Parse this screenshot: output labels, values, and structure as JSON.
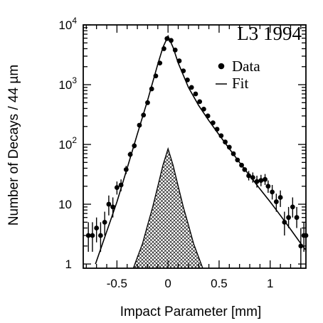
{
  "chart_data": {
    "type": "scatter",
    "annotation": "L3  1994",
    "xlabel": "Impact Parameter [mm]",
    "ylabel": "Number of Decays / 44 µm",
    "xlim": [
      -0.83,
      1.35
    ],
    "ylim": [
      0.85,
      10000
    ],
    "yscale": "log",
    "xticks": [
      -0.5,
      0,
      0.5,
      1
    ],
    "xtick_labels": [
      "-0.5",
      "0",
      "0.5",
      "1"
    ],
    "yticks": [
      1,
      10,
      100,
      1000,
      10000
    ],
    "ytick_labels": [
      {
        "base": "1",
        "exp": ""
      },
      {
        "base": "10",
        "exp": ""
      },
      {
        "base": "10",
        "exp": "2"
      },
      {
        "base": "10",
        "exp": "3"
      },
      {
        "base": "10",
        "exp": "4"
      }
    ],
    "legend": {
      "position": "top-right",
      "entries": [
        {
          "label": "Data",
          "marker": "dot"
        },
        {
          "label": "Fit",
          "marker": "line"
        }
      ]
    },
    "series": [
      {
        "name": "Data",
        "kind": "points-with-errors",
        "points": [
          {
            "x": -0.78,
            "y": 3.0,
            "ylo": 1.6,
            "yhi": 5.0
          },
          {
            "x": -0.74,
            "y": 3.0,
            "ylo": 1.6,
            "yhi": 5.0
          },
          {
            "x": -0.7,
            "y": 4.0,
            "ylo": 2.3,
            "yhi": 6.0
          },
          {
            "x": -0.66,
            "y": 3.0,
            "ylo": 1.6,
            "yhi": 5.0
          },
          {
            "x": -0.62,
            "y": 5.0,
            "ylo": 3.0,
            "yhi": 7.5
          },
          {
            "x": -0.58,
            "y": 10.0,
            "ylo": 6.5,
            "yhi": 14.0
          },
          {
            "x": -0.54,
            "y": 9.0,
            "ylo": 6.0,
            "yhi": 13.0
          },
          {
            "x": -0.5,
            "y": 19.0,
            "ylo": 14.5,
            "yhi": 24.0
          },
          {
            "x": -0.46,
            "y": 21.0,
            "ylo": 16.5,
            "yhi": 26.0
          },
          {
            "x": -0.41,
            "y": 38.0,
            "ylo": 32.0,
            "yhi": 44.0
          },
          {
            "x": -0.37,
            "y": 68.0,
            "ylo": 60.0,
            "yhi": 76.0
          },
          {
            "x": -0.33,
            "y": 95.0,
            "ylo": 86.0,
            "yhi": 105.0
          },
          {
            "x": -0.28,
            "y": 210.0
          },
          {
            "x": -0.24,
            "y": 310.0
          },
          {
            "x": -0.2,
            "y": 500.0
          },
          {
            "x": -0.16,
            "y": 850.0
          },
          {
            "x": -0.12,
            "y": 1400.0
          },
          {
            "x": -0.08,
            "y": 2300.0
          },
          {
            "x": -0.04,
            "y": 4000.0
          },
          {
            "x": -0.01,
            "y": 5900.0
          },
          {
            "x": 0.03,
            "y": 5500.0
          },
          {
            "x": 0.07,
            "y": 3800.0
          },
          {
            "x": 0.11,
            "y": 2500.0
          },
          {
            "x": 0.15,
            "y": 1700.0
          },
          {
            "x": 0.19,
            "y": 1200.0
          },
          {
            "x": 0.23,
            "y": 900.0
          },
          {
            "x": 0.27,
            "y": 700.0
          },
          {
            "x": 0.31,
            "y": 520.0
          },
          {
            "x": 0.35,
            "y": 390.0
          },
          {
            "x": 0.39,
            "y": 300.0
          },
          {
            "x": 0.44,
            "y": 230.0
          },
          {
            "x": 0.48,
            "y": 180.0
          },
          {
            "x": 0.52,
            "y": 140.0
          },
          {
            "x": 0.56,
            "y": 110.0
          },
          {
            "x": 0.6,
            "y": 90.0
          },
          {
            "x": 0.64,
            "y": 70.0
          },
          {
            "x": 0.68,
            "y": 55.0
          },
          {
            "x": 0.72,
            "y": 45.0
          },
          {
            "x": 0.75,
            "y": 38.0
          },
          {
            "x": 0.79,
            "y": 30.0,
            "ylo": 25.0,
            "yhi": 36.0
          },
          {
            "x": 0.83,
            "y": 28.0,
            "ylo": 23.0,
            "yhi": 34.0
          },
          {
            "x": 0.87,
            "y": 24.0,
            "ylo": 19.0,
            "yhi": 30.0
          },
          {
            "x": 0.91,
            "y": 25.0,
            "ylo": 20.0,
            "yhi": 31.0
          },
          {
            "x": 0.95,
            "y": 26.0,
            "ylo": 21.0,
            "yhi": 32.0
          },
          {
            "x": 0.98,
            "y": 20.0,
            "ylo": 15.5,
            "yhi": 25.0
          },
          {
            "x": 1.02,
            "y": 16.0,
            "ylo": 12.0,
            "yhi": 21.0
          },
          {
            "x": 1.06,
            "y": 11.0,
            "ylo": 7.5,
            "yhi": 15.0
          },
          {
            "x": 1.1,
            "y": 13.0,
            "ylo": 9.0,
            "yhi": 17.0
          },
          {
            "x": 1.14,
            "y": 5.0,
            "ylo": 3.0,
            "yhi": 7.5
          },
          {
            "x": 1.18,
            "y": 6.0,
            "ylo": 4.0,
            "yhi": 9.0
          },
          {
            "x": 1.22,
            "y": 9.0,
            "ylo": 6.0,
            "yhi": 13.0
          },
          {
            "x": 1.26,
            "y": 6.0,
            "ylo": 4.0,
            "yhi": 9.0
          },
          {
            "x": 1.3,
            "y": 2.0,
            "ylo": 0.85,
            "yhi": 4.0
          },
          {
            "x": 1.33,
            "y": 3.0,
            "ylo": 1.6,
            "yhi": 5.0
          },
          {
            "x": 1.35,
            "y": 3.0,
            "ylo": 1.6,
            "yhi": 5.0
          }
        ]
      },
      {
        "name": "Fit",
        "kind": "line",
        "x": [
          -0.71,
          -0.6,
          -0.5,
          -0.4,
          -0.3,
          -0.2,
          -0.1,
          -0.05,
          0,
          0.05,
          0.1,
          0.2,
          0.3,
          0.4,
          0.5,
          0.6,
          0.7,
          0.8,
          0.9,
          1.0,
          1.1,
          1.2,
          1.3,
          1.35
        ],
        "y": [
          1,
          3.5,
          11,
          40,
          150,
          550,
          2200,
          4200,
          6500,
          4200,
          2300,
          900,
          450,
          250,
          145,
          85,
          50,
          30,
          18,
          11,
          6.5,
          3.8,
          2.2,
          1.7
        ]
      },
      {
        "kind": "hatched-area",
        "x": [
          -0.34,
          -0.3,
          -0.25,
          -0.2,
          -0.15,
          -0.1,
          -0.05,
          0,
          0.05,
          0.1,
          0.15,
          0.2,
          0.25,
          0.3,
          0.34
        ],
        "y": [
          0.85,
          1.3,
          2.2,
          4.5,
          9,
          20,
          45,
          85,
          45,
          20,
          9,
          4.5,
          2.2,
          1.3,
          0.85
        ]
      }
    ],
    "colors": {
      "ink": "#000000",
      "background": "#ffffff"
    }
  }
}
